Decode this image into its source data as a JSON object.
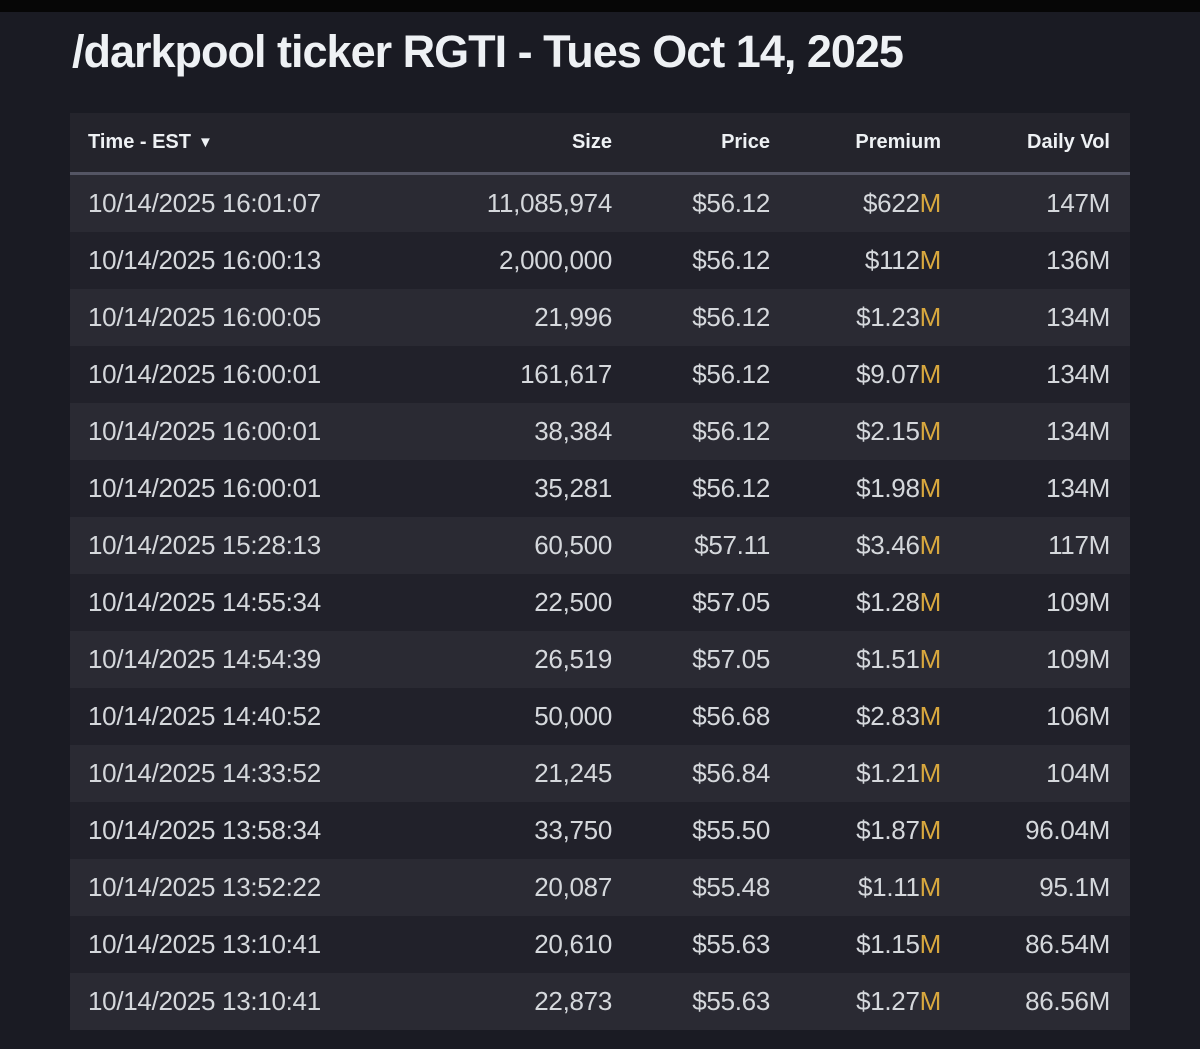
{
  "window": {
    "title": "/darkpool ticker RGTI - Tues Oct 14, 2025"
  },
  "table": {
    "header": {
      "time_label": "Time - EST",
      "sort_indicator": "▼",
      "size_label": "Size",
      "price_label": "Price",
      "premium_label": "Premium",
      "daily_vol_label": "Daily Vol"
    },
    "rows": [
      {
        "time": "10/14/2025 16:01:07",
        "size": "11,085,974",
        "price": "$56.12",
        "premium_value": "$622",
        "premium_suffix": "M",
        "daily_vol": "147M"
      },
      {
        "time": "10/14/2025 16:00:13",
        "size": "2,000,000",
        "price": "$56.12",
        "premium_value": "$112",
        "premium_suffix": "M",
        "daily_vol": "136M"
      },
      {
        "time": "10/14/2025 16:00:05",
        "size": "21,996",
        "price": "$56.12",
        "premium_value": "$1.23",
        "premium_suffix": "M",
        "daily_vol": "134M"
      },
      {
        "time": "10/14/2025 16:00:01",
        "size": "161,617",
        "price": "$56.12",
        "premium_value": "$9.07",
        "premium_suffix": "M",
        "daily_vol": "134M"
      },
      {
        "time": "10/14/2025 16:00:01",
        "size": "38,384",
        "price": "$56.12",
        "premium_value": "$2.15",
        "premium_suffix": "M",
        "daily_vol": "134M"
      },
      {
        "time": "10/14/2025 16:00:01",
        "size": "35,281",
        "price": "$56.12",
        "premium_value": "$1.98",
        "premium_suffix": "M",
        "daily_vol": "134M"
      },
      {
        "time": "10/14/2025 15:28:13",
        "size": "60,500",
        "price": "$57.11",
        "premium_value": "$3.46",
        "premium_suffix": "M",
        "daily_vol": "117M"
      },
      {
        "time": "10/14/2025 14:55:34",
        "size": "22,500",
        "price": "$57.05",
        "premium_value": "$1.28",
        "premium_suffix": "M",
        "daily_vol": "109M"
      },
      {
        "time": "10/14/2025 14:54:39",
        "size": "26,519",
        "price": "$57.05",
        "premium_value": "$1.51",
        "premium_suffix": "M",
        "daily_vol": "109M"
      },
      {
        "time": "10/14/2025 14:40:52",
        "size": "50,000",
        "price": "$56.68",
        "premium_value": "$2.83",
        "premium_suffix": "M",
        "daily_vol": "106M"
      },
      {
        "time": "10/14/2025 14:33:52",
        "size": "21,245",
        "price": "$56.84",
        "premium_value": "$1.21",
        "premium_suffix": "M",
        "daily_vol": "104M"
      },
      {
        "time": "10/14/2025 13:58:34",
        "size": "33,750",
        "price": "$55.50",
        "premium_value": "$1.87",
        "premium_suffix": "M",
        "daily_vol": "96.04M"
      },
      {
        "time": "10/14/2025 13:52:22",
        "size": "20,087",
        "price": "$55.48",
        "premium_value": "$1.11",
        "premium_suffix": "M",
        "daily_vol": "95.1M"
      },
      {
        "time": "10/14/2025 13:10:41",
        "size": "20,610",
        "price": "$55.63",
        "premium_value": "$1.15",
        "premium_suffix": "M",
        "daily_vol": "86.54M"
      },
      {
        "time": "10/14/2025 13:10:41",
        "size": "22,873",
        "price": "$55.63",
        "premium_value": "$1.27",
        "premium_suffix": "M",
        "daily_vol": "86.56M"
      }
    ]
  },
  "colors": {
    "page_bg": "#1a1b23",
    "top_bar_bg": "#060606",
    "header_bg": "#24242c",
    "row_odd_bg": "#2a2a33",
    "row_even_bg": "#21212a",
    "divider": "#545564",
    "text": "#d5d8dc",
    "heading_text": "#eef1f4",
    "premium_suffix_gold": "#d9a83e"
  }
}
